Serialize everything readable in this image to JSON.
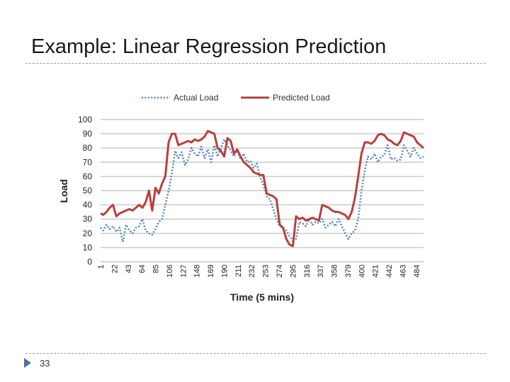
{
  "slide": {
    "title": "Example: Linear Regression Prediction",
    "page_number": "33"
  },
  "colors": {
    "actual": "#5b86bf",
    "predicted": "#b8403b",
    "grid": "#c8c8c8"
  },
  "chart_data": {
    "type": "line",
    "title": "",
    "xlabel": "Time (5 mins)",
    "ylabel": "Load",
    "ylim": [
      0,
      100
    ],
    "yticks": [
      0,
      10,
      20,
      30,
      40,
      50,
      60,
      70,
      80,
      90,
      100
    ],
    "xlim": [
      1,
      495
    ],
    "xticks": [
      1,
      22,
      43,
      64,
      85,
      106,
      127,
      148,
      169,
      190,
      211,
      232,
      253,
      274,
      295,
      316,
      337,
      358,
      379,
      400,
      421,
      442,
      463,
      484
    ],
    "legend_position": "top",
    "series": [
      {
        "name": "Actual Load",
        "style": "dotted",
        "x": [
          1,
          5,
          10,
          15,
          20,
          25,
          30,
          35,
          40,
          45,
          50,
          55,
          60,
          65,
          70,
          75,
          80,
          85,
          90,
          95,
          100,
          105,
          110,
          115,
          120,
          125,
          130,
          135,
          140,
          145,
          150,
          155,
          160,
          165,
          170,
          175,
          180,
          185,
          190,
          195,
          200,
          205,
          210,
          215,
          220,
          225,
          230,
          235,
          240,
          245,
          250,
          255,
          260,
          265,
          270,
          275,
          280,
          285,
          290,
          295,
          300,
          305,
          310,
          315,
          320,
          325,
          330,
          335,
          340,
          345,
          350,
          355,
          360,
          365,
          370,
          375,
          380,
          385,
          390,
          395,
          400,
          405,
          410,
          415,
          420,
          425,
          430,
          435,
          440,
          445,
          450,
          455,
          460,
          465,
          470,
          475,
          480,
          485,
          490,
          495
        ],
        "values": [
          24,
          22,
          26,
          23,
          25,
          21,
          24,
          14,
          26,
          22,
          20,
          24,
          25,
          30,
          22,
          20,
          19,
          23,
          28,
          30,
          40,
          50,
          62,
          78,
          73,
          77,
          68,
          72,
          80,
          76,
          74,
          81,
          73,
          79,
          70,
          82,
          74,
          80,
          86,
          82,
          78,
          74,
          79,
          72,
          76,
          70,
          71,
          66,
          69,
          60,
          54,
          46,
          44,
          37,
          30,
          25,
          24,
          22,
          18,
          15,
          16,
          28,
          27,
          25,
          30,
          26,
          28,
          27,
          30,
          24,
          26,
          28,
          25,
          30,
          25,
          20,
          16,
          20,
          22,
          30,
          50,
          64,
          74,
          72,
          76,
          70,
          74,
          75,
          82,
          72,
          73,
          71,
          72,
          82,
          78,
          74,
          80,
          76,
          73,
          74
        ]
      },
      {
        "name": "Predicted Load",
        "style": "solid",
        "x": [
          1,
          5,
          10,
          15,
          20,
          25,
          30,
          35,
          40,
          45,
          50,
          55,
          60,
          65,
          70,
          75,
          80,
          85,
          90,
          95,
          100,
          105,
          110,
          115,
          120,
          125,
          130,
          135,
          140,
          145,
          150,
          155,
          160,
          165,
          170,
          175,
          180,
          185,
          190,
          195,
          200,
          205,
          210,
          215,
          220,
          225,
          230,
          235,
          240,
          245,
          250,
          255,
          260,
          265,
          270,
          275,
          280,
          285,
          290,
          295,
          300,
          305,
          310,
          315,
          320,
          325,
          330,
          335,
          340,
          345,
          350,
          355,
          360,
          365,
          370,
          375,
          380,
          385,
          390,
          395,
          400,
          405,
          410,
          415,
          420,
          425,
          430,
          435,
          440,
          445,
          450,
          455,
          460,
          465,
          470,
          475,
          480,
          485,
          490,
          495
        ],
        "values": [
          34,
          33,
          35,
          38,
          40,
          32,
          34,
          35,
          36,
          37,
          36,
          38,
          40,
          38,
          42,
          50,
          36,
          52,
          48,
          55,
          60,
          84,
          90,
          90,
          82,
          83,
          84,
          85,
          84,
          86,
          85,
          86,
          88,
          92,
          91,
          90,
          80,
          78,
          74,
          87,
          85,
          76,
          79,
          74,
          70,
          68,
          66,
          63,
          62,
          61,
          61,
          48,
          47,
          46,
          44,
          26,
          24,
          16,
          12,
          11,
          32,
          30,
          31,
          29,
          30,
          31,
          30,
          29,
          40,
          39,
          38,
          36,
          35,
          35,
          34,
          33,
          30,
          35,
          45,
          60,
          76,
          84,
          84,
          83,
          85,
          89,
          90,
          89,
          86,
          85,
          83,
          82,
          85,
          91,
          90,
          89,
          88,
          84,
          82,
          80
        ]
      }
    ]
  }
}
